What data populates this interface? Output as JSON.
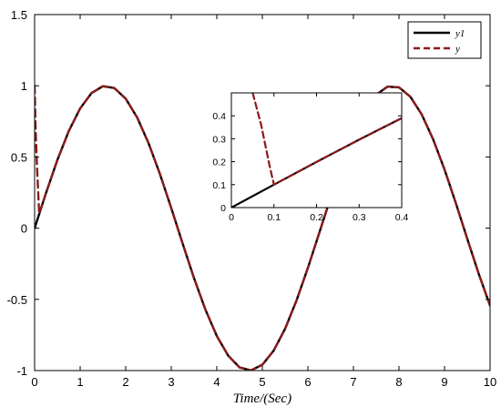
{
  "chart_data": [
    {
      "type": "line",
      "title": "",
      "xlabel": "Time/(Sec)",
      "ylabel": "",
      "xlim": [
        0,
        10
      ],
      "ylim": [
        -1,
        1.5
      ],
      "xticks": [
        0,
        1,
        2,
        3,
        4,
        5,
        6,
        7,
        8,
        9,
        10
      ],
      "yticks": [
        -1,
        -0.5,
        0,
        0.5,
        1,
        1.5
      ],
      "xtick_labels": [
        "0",
        "1",
        "2",
        "3",
        "4",
        "5",
        "6",
        "7",
        "8",
        "9",
        "10"
      ],
      "ytick_labels": [
        "-1",
        "-0.5",
        "0",
        "0.5",
        "1",
        "1.5"
      ],
      "grid": false,
      "legend_position": "top-right",
      "series": [
        {
          "name": "y1",
          "style": "solid",
          "color": "#000000",
          "x": [
            0,
            0.25,
            0.5,
            0.75,
            1,
            1.25,
            1.5,
            1.75,
            2,
            2.25,
            2.5,
            2.75,
            3,
            3.25,
            3.5,
            3.75,
            4,
            4.25,
            4.5,
            4.75,
            5,
            5.25,
            5.5,
            5.75,
            6,
            6.25,
            6.5,
            6.75,
            7,
            7.25,
            7.5,
            7.75,
            8,
            8.25,
            8.5,
            8.75,
            9,
            9.25,
            9.5,
            9.75,
            10
          ],
          "y": [
            0,
            0.247,
            0.479,
            0.682,
            0.841,
            0.949,
            0.997,
            0.984,
            0.909,
            0.778,
            0.598,
            0.382,
            0.141,
            -0.108,
            -0.351,
            -0.572,
            -0.757,
            -0.895,
            -0.978,
            -0.999,
            -0.959,
            -0.859,
            -0.706,
            -0.508,
            -0.279,
            -0.033,
            0.215,
            0.45,
            0.657,
            0.823,
            0.938,
            0.994,
            0.989,
            0.923,
            0.798,
            0.624,
            0.412,
            0.174,
            -0.075,
            -0.32,
            -0.544
          ]
        },
        {
          "name": "y",
          "style": "dashed",
          "color": "#8b1a1a",
          "x": [
            0,
            0.02,
            0.05,
            0.1,
            0.25,
            0.5,
            0.75,
            1,
            1.25,
            1.5,
            1.75,
            2,
            2.25,
            2.5,
            2.75,
            3,
            3.25,
            3.5,
            3.75,
            4,
            4.25,
            4.5,
            4.75,
            5,
            5.25,
            5.5,
            5.75,
            6,
            6.25,
            6.5,
            6.75,
            7,
            7.25,
            7.5,
            7.75,
            8,
            8.25,
            8.5,
            8.75,
            9,
            9.25,
            9.5,
            9.75,
            10
          ],
          "y": [
            1.0,
            0.72,
            0.45,
            0.1,
            0.247,
            0.479,
            0.682,
            0.841,
            0.949,
            0.997,
            0.984,
            0.909,
            0.778,
            0.598,
            0.382,
            0.141,
            -0.108,
            -0.351,
            -0.572,
            -0.757,
            -0.895,
            -0.978,
            -0.999,
            -0.959,
            -0.859,
            -0.706,
            -0.508,
            -0.279,
            -0.033,
            0.215,
            0.45,
            0.657,
            0.823,
            0.938,
            0.994,
            0.989,
            0.923,
            0.798,
            0.624,
            0.412,
            0.174,
            -0.075,
            -0.32,
            -0.544
          ]
        }
      ]
    },
    {
      "type": "line",
      "title": "",
      "xlabel": "",
      "ylabel": "",
      "xlim": [
        0,
        0.4
      ],
      "ylim": [
        0,
        0.5
      ],
      "xticks": [
        0,
        0.1,
        0.2,
        0.3,
        0.4
      ],
      "yticks": [
        0,
        0.1,
        0.2,
        0.3,
        0.4
      ],
      "xtick_labels": [
        "0",
        "0.1",
        "0.2",
        "0.3",
        "0.4"
      ],
      "ytick_labels": [
        "0",
        "0.1",
        "0.2",
        "0.3",
        "0.4"
      ],
      "grid": false,
      "series": [
        {
          "name": "y1",
          "style": "solid",
          "color": "#000000",
          "x": [
            0,
            0.1,
            0.2,
            0.3,
            0.4
          ],
          "y": [
            0,
            0.1,
            0.199,
            0.296,
            0.39
          ]
        },
        {
          "name": "y",
          "style": "dashed",
          "color": "#8b1a1a",
          "x": [
            0.05,
            0.07,
            0.09,
            0.1,
            0.2,
            0.3,
            0.4
          ],
          "y": [
            0.5,
            0.36,
            0.18,
            0.1,
            0.199,
            0.296,
            0.39
          ]
        }
      ]
    }
  ],
  "legend": {
    "entries": [
      {
        "label": "y1",
        "style": "solid",
        "color": "#000000"
      },
      {
        "label": "y",
        "style": "dashed",
        "color": "#8b1a1a"
      }
    ]
  }
}
